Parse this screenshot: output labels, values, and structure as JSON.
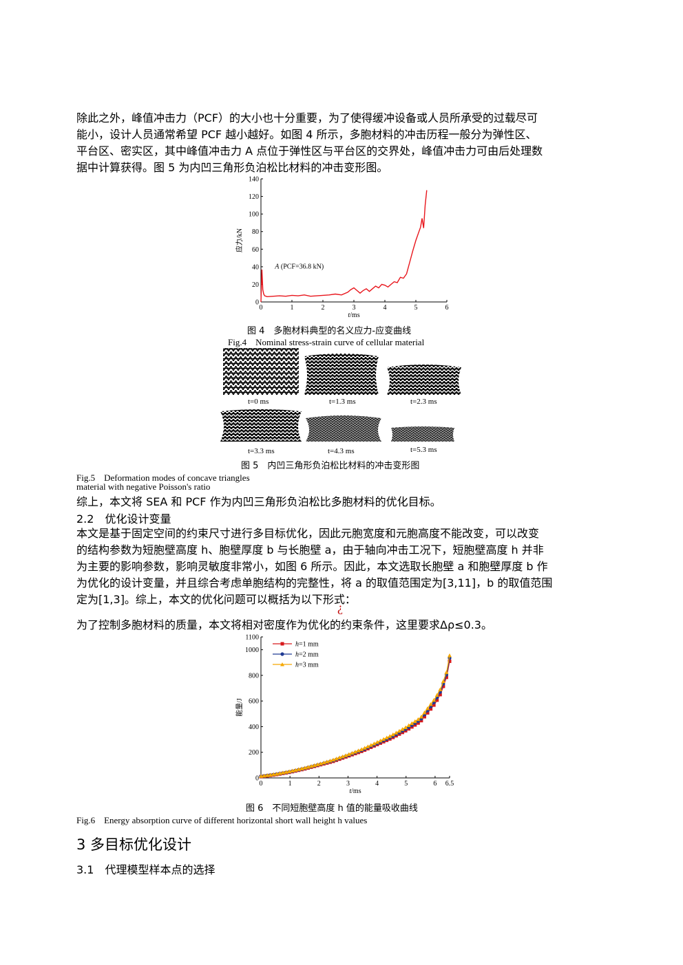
{
  "para1": {
    "lines": [
      "除此之外，峰值冲击力（PCF）的大小也十分重要，为了使得缓冲设备或人员所承受的过载尽可",
      "能小，设计人员通常希望 PCF 越小越好。如图 4 所示，多胞材料的冲击历程一般分为弹性区、",
      "平台区、密实区，其中峰值冲击力 A 点位于弹性区与平台区的交界处，峰值冲击力可由后处理数",
      "据中计算获得。图 5 为内凹三角形负泊松比材料的冲击变形图。"
    ]
  },
  "fig4": {
    "caption_cn": "图 4　多胞材料典型的名义应力-应变曲线",
    "caption_en": "Fig.4　Nominal stress-strain curve of cellular material"
  },
  "fig5": {
    "caption_cn": "图 5　内凹三角形负泊松比材料的冲击变形图",
    "caption_en_1": "Fig.5　Deformation modes of concave triangles",
    "caption_en_2": "material with negative Poisson's ratio",
    "frames": [
      "t=0 ms",
      "t=1.3 ms",
      "t=2.3 ms",
      "t=3.3 ms",
      "t=4.3 ms",
      "t=5.3 ms"
    ]
  },
  "para2": "综上，本文将 SEA 和 PCF 作为内凹三角形负泊松比多胞材料的优化目标。",
  "section22": "2.2　优化设计变量",
  "para3": {
    "lines": [
      "本文是基于固定空间的约束尺寸进行多目标优化，因此元胞宽度和元胞高度不能改变，可以改变",
      "的结构参数为短胞壁高度 h、胞壁厚度 b 与长胞壁 a，由于轴向冲击工况下，短胞壁高度 h 并非",
      "为主要的影响参数，影响灵敏度非常小，如图 6 所示。因此，本文选取长胞壁 a 和胞壁厚度 b 作",
      "为优化的设计变量，并且综合考虑单胞结构的完整性，将 a 的取值范围定为[3,11]，b 的取值范围",
      "定为[1,3]。综上，本文的优化问题可以概括为以下形式："
    ]
  },
  "formula_placeholder": "¿",
  "para4": "为了控制多胞材料的质量，本文将相对密度作为优化的约束条件，这里要求Δρ≤0.3。",
  "fig6": {
    "caption_cn": "图 6　不同短胞壁高度 h 值的能量吸收曲线",
    "caption_en": "Fig.6　Energy absorption curve of different horizontal short wall height h values"
  },
  "heading3": "3 多目标优化设计",
  "heading31": "3.1　代理模型样本点的选择",
  "chart_data": [
    {
      "type": "line",
      "id": "fig4-chart",
      "xlabel": "t/ms",
      "ylabel": "应力/kN",
      "xlim": [
        0,
        6
      ],
      "ylim": [
        0,
        140
      ],
      "xticks": [
        0,
        1,
        2,
        3,
        4,
        5,
        6
      ],
      "yticks": [
        0,
        20,
        40,
        60,
        80,
        100,
        120,
        140
      ],
      "annotation": "A (PCF=36.8 kN)",
      "series": [
        {
          "color": "#e8141b",
          "x": [
            0,
            0.03,
            0.06,
            0.09,
            0.12,
            0.2,
            0.4,
            0.6,
            0.8,
            1.0,
            1.2,
            1.4,
            1.6,
            1.8,
            2.0,
            2.2,
            2.4,
            2.6,
            2.8,
            2.9,
            3.0,
            3.1,
            3.2,
            3.3,
            3.4,
            3.5,
            3.6,
            3.7,
            3.8,
            3.9,
            4.0,
            4.1,
            4.2,
            4.3,
            4.4,
            4.5,
            4.6,
            4.7,
            4.8,
            4.9,
            5.0,
            5.1,
            5.15,
            5.2,
            5.25,
            5.3,
            5.35
          ],
          "y": [
            0,
            36.8,
            14,
            9,
            7,
            6,
            6.5,
            7,
            6.5,
            7.5,
            7,
            8,
            6.5,
            7,
            7.5,
            8,
            9,
            8,
            11,
            14,
            16,
            13,
            10,
            13,
            15,
            12,
            15,
            18,
            16,
            20,
            19,
            17,
            20,
            23,
            22,
            28,
            27,
            32,
            45,
            58,
            70,
            80,
            85,
            95,
            84,
            110,
            127
          ]
        }
      ]
    },
    {
      "type": "line",
      "id": "fig6-chart",
      "xlabel": "t/ms",
      "ylabel": "能量/J",
      "xlim": [
        0,
        6.5
      ],
      "ylim": [
        0,
        1100
      ],
      "xticks": [
        0,
        1,
        2,
        3,
        4,
        5,
        6,
        6.5
      ],
      "yticks": [
        0,
        200,
        400,
        600,
        800,
        1000,
        1100
      ],
      "legend_position": "top-left",
      "series": [
        {
          "name": "h=1 mm",
          "color": "#d7191c",
          "marker": "square",
          "x": [
            0,
            0.5,
            1,
            1.5,
            2,
            2.5,
            3,
            3.5,
            4,
            4.5,
            5,
            5.5,
            6,
            6.2,
            6.4,
            6.5
          ],
          "y": [
            10,
            25,
            45,
            70,
            100,
            130,
            170,
            210,
            260,
            310,
            370,
            440,
            580,
            660,
            790,
            910
          ]
        },
        {
          "name": "h=2 mm",
          "color": "#1f3a93",
          "marker": "circle",
          "x": [
            0,
            0.5,
            1,
            1.5,
            2,
            2.5,
            3,
            3.5,
            4,
            4.5,
            5,
            5.5,
            6,
            6.2,
            6.4,
            6.5
          ],
          "y": [
            12,
            28,
            48,
            74,
            104,
            136,
            176,
            218,
            268,
            320,
            382,
            455,
            600,
            680,
            810,
            935
          ]
        },
        {
          "name": "h=3 mm",
          "color": "#f5a800",
          "marker": "triangle",
          "x": [
            0,
            0.5,
            1,
            1.5,
            2,
            2.5,
            3,
            3.5,
            4,
            4.5,
            5,
            5.5,
            6,
            6.2,
            6.4,
            6.5
          ],
          "y": [
            14,
            30,
            52,
            78,
            108,
            142,
            182,
            226,
            278,
            332,
            396,
            470,
            620,
            700,
            830,
            955
          ]
        }
      ]
    }
  ]
}
